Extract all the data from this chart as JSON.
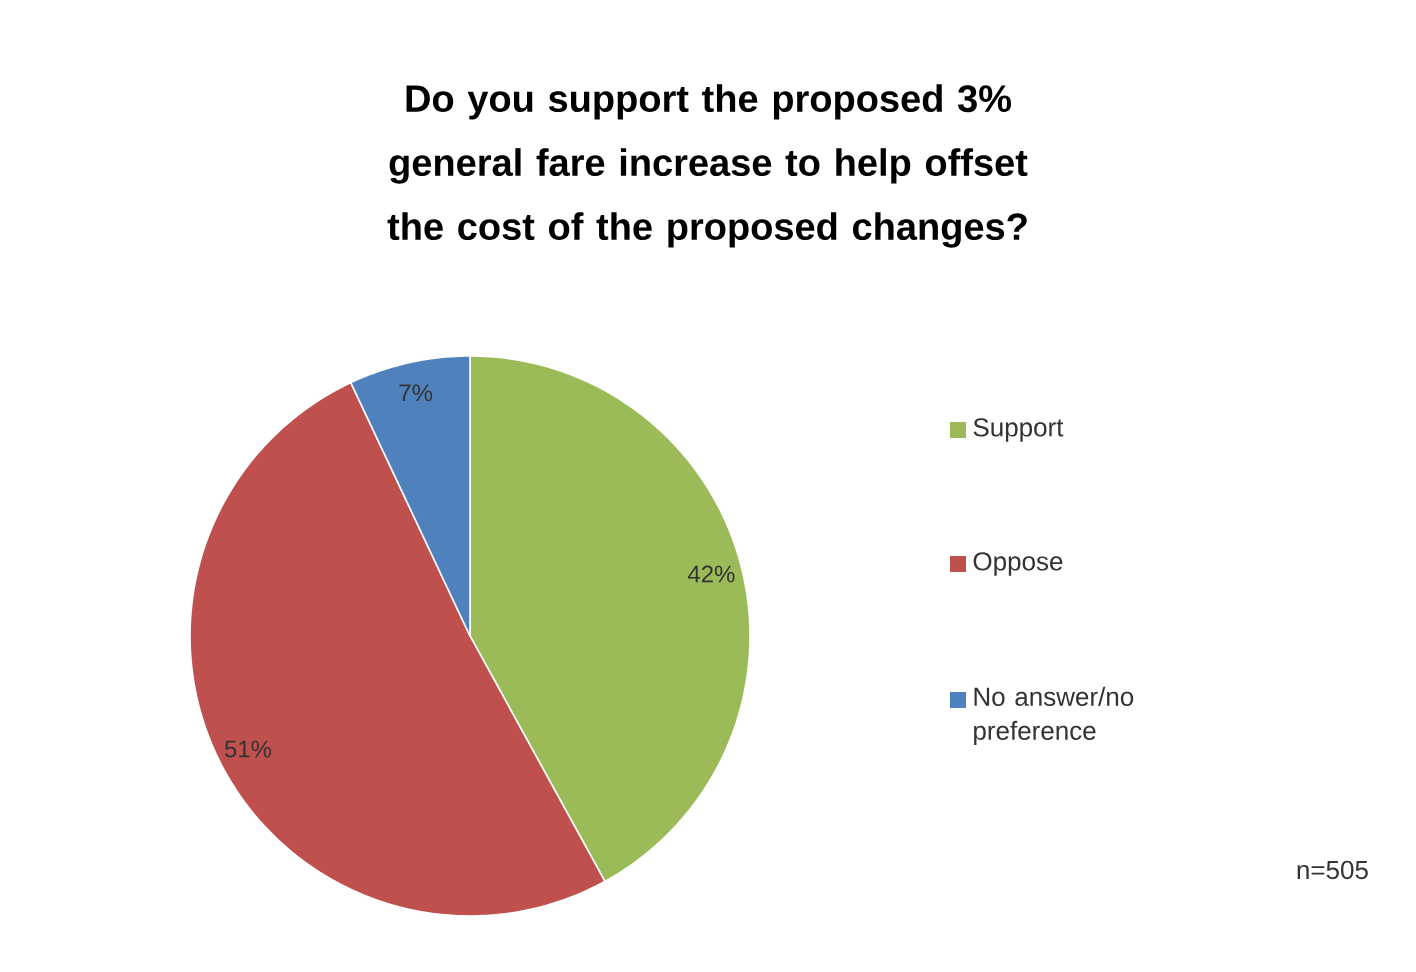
{
  "chart_data": {
    "type": "pie",
    "title": "Do you support the proposed 3% general fare increase to help offset the cost of the proposed changes?",
    "categories": [
      "Support",
      "Oppose",
      "No answer/no preference"
    ],
    "values": [
      42,
      51,
      7
    ],
    "value_labels": [
      "42%",
      "51%",
      "7%"
    ],
    "colors": [
      "#9bbb59",
      "#c0504d",
      "#4f81bd"
    ],
    "legend": "right",
    "annotations": [
      "n=505"
    ]
  }
}
